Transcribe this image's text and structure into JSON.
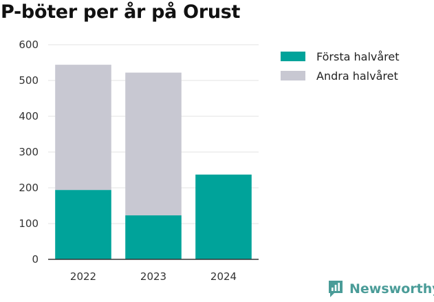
{
  "chart_data": {
    "type": "bar",
    "stacked": true,
    "title": "P-böter per år på Orust",
    "categories": [
      "2022",
      "2023",
      "2024"
    ],
    "series": [
      {
        "name": "Första halvåret",
        "color": "#00a39a",
        "values": [
          194,
          123,
          237
        ]
      },
      {
        "name": "Andra halvåret",
        "color": "#c8c8d2",
        "values": [
          350,
          399,
          0
        ]
      }
    ],
    "ylim": [
      0,
      600
    ],
    "yticks": [
      0,
      100,
      200,
      300,
      400,
      500,
      600
    ],
    "grid": true,
    "legend_position": "right"
  },
  "brand": {
    "name": "Newsworthy",
    "color": "#4a9c98",
    "icon": "newsworthy-logo-icon"
  }
}
